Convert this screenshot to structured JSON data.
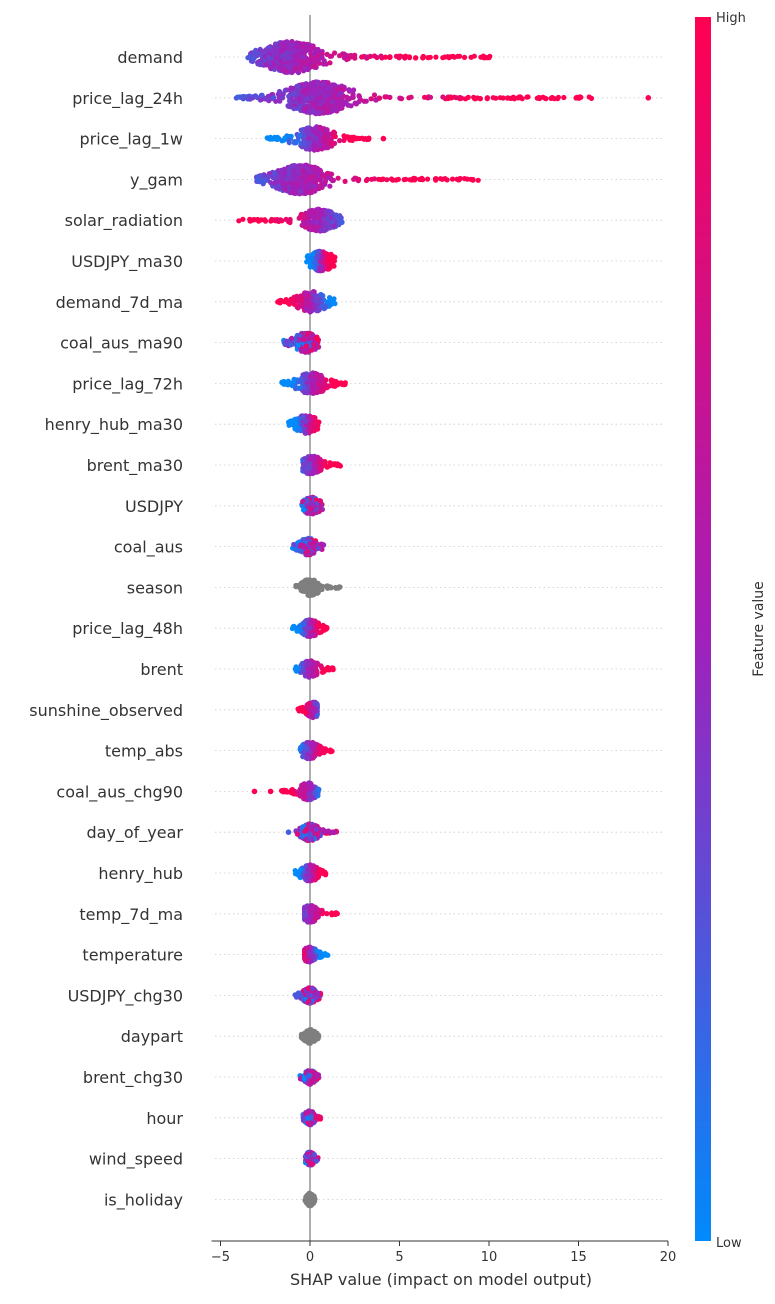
{
  "chart_data": {
    "type": "beeswarm",
    "title": "",
    "xlabel": "SHAP value (impact on model output)",
    "ylabel": "",
    "xlim": [
      -5.5,
      20
    ],
    "xticks": [
      -5,
      0,
      5,
      10,
      15,
      20
    ],
    "xtick_labels": [
      "−5",
      "0",
      "5",
      "10",
      "15",
      "20"
    ],
    "colorbar": {
      "label": "Feature value",
      "high_label": "High",
      "low_label": "Low",
      "low_color": "#008afb",
      "mid_color": "#a31fba",
      "high_color": "#ff0052"
    },
    "no_value_color": "#7f7f7f",
    "features": [
      {
        "name": "demand",
        "min": -3.5,
        "max": 10.1,
        "peak": -1.0,
        "spread": 1.6,
        "pattern": "neg_low_high_right",
        "outliers": []
      },
      {
        "name": "price_lag_24h",
        "min": -4.2,
        "max": 15.8,
        "peak": 0.5,
        "spread": 1.7,
        "pattern": "neg_low_high_right",
        "outliers": [
          18.9
        ]
      },
      {
        "name": "price_lag_1w",
        "min": -2.6,
        "max": 3.5,
        "peak": 0.3,
        "spread": 1.0,
        "pattern": "neg_low_high_right",
        "outliers": [
          4.1
        ]
      },
      {
        "name": "y_gam",
        "min": -3.0,
        "max": 9.4,
        "peak": -0.5,
        "spread": 1.4,
        "pattern": "neg_low_high_right",
        "outliers": []
      },
      {
        "name": "solar_radiation",
        "min": -4.2,
        "max": 1.8,
        "peak": 0.5,
        "spread": 0.9,
        "pattern": "neg_high_low_right",
        "outliers": []
      },
      {
        "name": "USDJPY_ma30",
        "min": -0.2,
        "max": 1.4,
        "peak": 0.6,
        "spread": 0.7,
        "pattern": "neg_low_high_right",
        "outliers": []
      },
      {
        "name": "demand_7d_ma",
        "min": -2.0,
        "max": 1.4,
        "peak": 0.1,
        "spread": 0.8,
        "pattern": "neg_high_low_right",
        "outliers": []
      },
      {
        "name": "coal_aus_ma90",
        "min": -1.5,
        "max": 0.5,
        "peak": -0.2,
        "spread": 0.7,
        "pattern": "mixed",
        "outliers": []
      },
      {
        "name": "price_lag_72h",
        "min": -1.7,
        "max": 2.1,
        "peak": 0.1,
        "spread": 0.8,
        "pattern": "neg_low_high_right",
        "outliers": []
      },
      {
        "name": "henry_hub_ma30",
        "min": -1.2,
        "max": 0.5,
        "peak": -0.2,
        "spread": 0.6,
        "pattern": "neg_low_high_right",
        "outliers": []
      },
      {
        "name": "brent_ma30",
        "min": -0.4,
        "max": 1.7,
        "peak": 0.1,
        "spread": 0.6,
        "pattern": "neg_low_high_right",
        "outliers": []
      },
      {
        "name": "USDJPY",
        "min": -0.5,
        "max": 0.8,
        "peak": 0.1,
        "spread": 0.5,
        "pattern": "mixed",
        "outliers": []
      },
      {
        "name": "coal_aus",
        "min": -1.0,
        "max": 0.8,
        "peak": -0.1,
        "spread": 0.5,
        "pattern": "mixed",
        "outliers": []
      },
      {
        "name": "season",
        "min": -0.8,
        "max": 1.7,
        "peak": 0.0,
        "spread": 0.5,
        "pattern": "gray",
        "outliers": []
      },
      {
        "name": "price_lag_48h",
        "min": -1.0,
        "max": 1.0,
        "peak": 0.0,
        "spread": 0.5,
        "pattern": "neg_low_high_right",
        "outliers": []
      },
      {
        "name": "brent",
        "min": -0.9,
        "max": 1.3,
        "peak": 0.0,
        "spread": 0.5,
        "pattern": "neg_low_high_right",
        "outliers": []
      },
      {
        "name": "sunshine_observed",
        "min": -0.7,
        "max": 0.4,
        "peak": 0.2,
        "spread": 0.4,
        "pattern": "neg_high_low_right",
        "outliers": []
      },
      {
        "name": "temp_abs",
        "min": -0.6,
        "max": 1.3,
        "peak": 0.0,
        "spread": 0.5,
        "pattern": "neg_low_high_right",
        "outliers": []
      },
      {
        "name": "coal_aus_chg90",
        "min": -1.7,
        "max": 0.5,
        "peak": -0.1,
        "spread": 0.5,
        "pattern": "neg_high_low_right",
        "outliers": [
          -3.1,
          -2.2
        ]
      },
      {
        "name": "day_of_year",
        "min": -0.8,
        "max": 1.6,
        "peak": 0.0,
        "spread": 0.5,
        "pattern": "mixed",
        "outliers": [
          -1.2
        ]
      },
      {
        "name": "henry_hub",
        "min": -1.0,
        "max": 0.9,
        "peak": 0.0,
        "spread": 0.5,
        "pattern": "neg_low_high_right",
        "outliers": []
      },
      {
        "name": "temp_7d_ma",
        "min": -0.3,
        "max": 1.6,
        "peak": 0.0,
        "spread": 0.5,
        "pattern": "neg_low_high_right",
        "outliers": []
      },
      {
        "name": "temperature",
        "min": -0.3,
        "max": 1.0,
        "peak": 0.0,
        "spread": 0.4,
        "pattern": "neg_high_low_right",
        "outliers": []
      },
      {
        "name": "USDJPY_chg30",
        "min": -0.9,
        "max": 0.6,
        "peak": 0.0,
        "spread": 0.4,
        "pattern": "mixed",
        "outliers": []
      },
      {
        "name": "daypart",
        "min": -0.5,
        "max": 0.5,
        "peak": 0.0,
        "spread": 0.3,
        "pattern": "gray",
        "outliers": []
      },
      {
        "name": "brent_chg30",
        "min": -0.6,
        "max": 0.5,
        "peak": 0.0,
        "spread": 0.3,
        "pattern": "mixed",
        "outliers": []
      },
      {
        "name": "hour",
        "min": -0.4,
        "max": 0.6,
        "peak": 0.0,
        "spread": 0.3,
        "pattern": "mixed",
        "outliers": []
      },
      {
        "name": "wind_speed",
        "min": -0.3,
        "max": 0.5,
        "peak": 0.0,
        "spread": 0.25,
        "pattern": "mixed",
        "outliers": []
      },
      {
        "name": "is_holiday",
        "min": -0.3,
        "max": 0.3,
        "peak": 0.0,
        "spread": 0.2,
        "pattern": "gray",
        "outliers": []
      }
    ]
  }
}
